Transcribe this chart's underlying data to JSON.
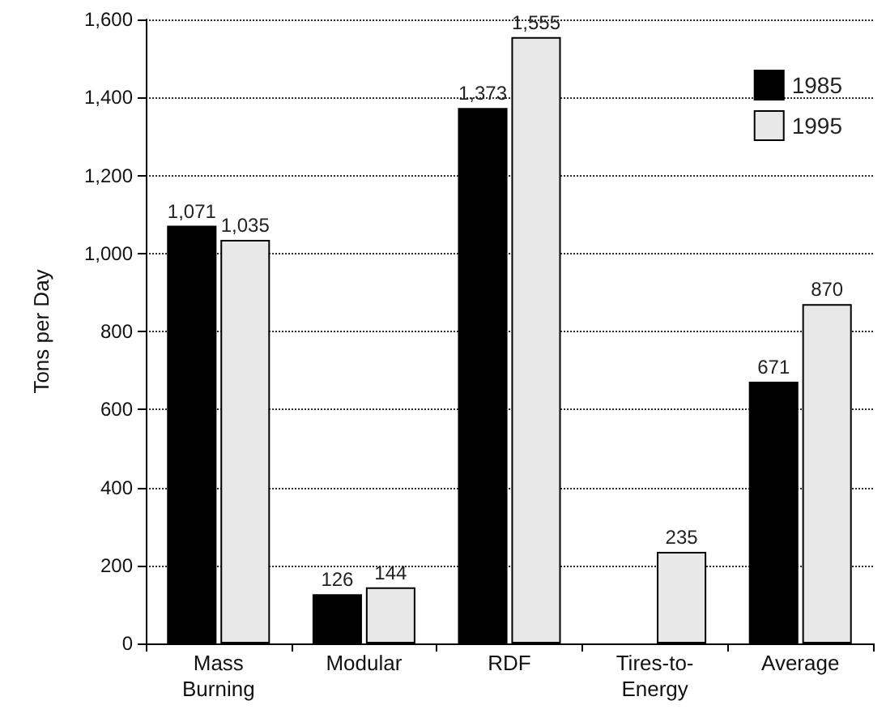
{
  "chart_data": {
    "type": "bar",
    "ylabel": "Tons per Day",
    "categories": [
      "Mass Burning",
      "Modular",
      "RDF",
      "Tires-to-Energy",
      "Average"
    ],
    "series": [
      {
        "name": "1985",
        "color": "#000000",
        "values": [
          1071,
          126,
          1373,
          null,
          671
        ],
        "value_labels": [
          "1,071",
          "126",
          "1,373",
          null,
          "671"
        ]
      },
      {
        "name": "1995",
        "color": "#e8e8e8",
        "values": [
          1035,
          144,
          1555,
          235,
          870
        ],
        "value_labels": [
          "1,035",
          "144",
          "1,555",
          "235",
          "870"
        ]
      }
    ],
    "ylim": [
      0,
      1600
    ],
    "yticks": [
      {
        "value": 0,
        "label": "0"
      },
      {
        "value": 200,
        "label": "200"
      },
      {
        "value": 400,
        "label": "400"
      },
      {
        "value": 600,
        "label": "600"
      },
      {
        "value": 800,
        "label": "800"
      },
      {
        "value": 1000,
        "label": "1,000"
      },
      {
        "value": 1200,
        "label": "1,200"
      },
      {
        "value": 1400,
        "label": "1,400"
      },
      {
        "value": 1600,
        "label": "1,600"
      }
    ],
    "grid": "y",
    "legend": "top right"
  }
}
